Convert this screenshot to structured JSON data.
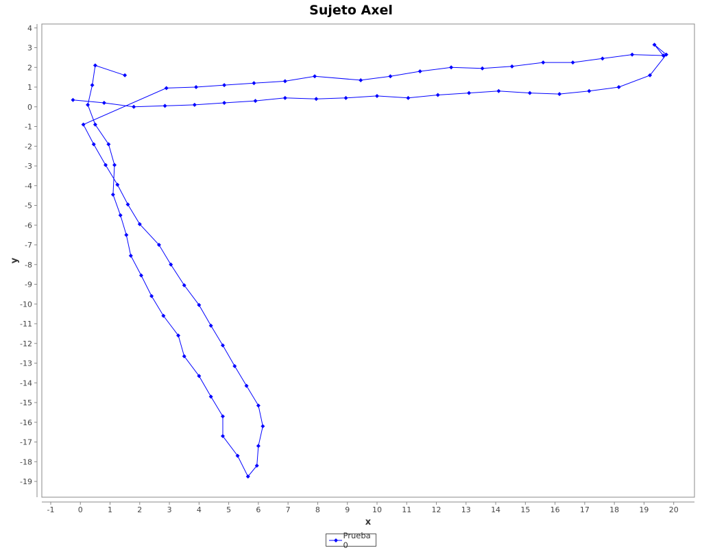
{
  "chart_data": {
    "type": "line",
    "title": "Sujeto Axel",
    "xlabel": "x",
    "ylabel": "y",
    "xlim": [
      -1.3,
      20.7
    ],
    "ylim": [
      -19.8,
      4.2
    ],
    "xticks": [
      -1,
      0,
      1,
      2,
      3,
      4,
      5,
      6,
      7,
      8,
      9,
      10,
      11,
      12,
      13,
      14,
      15,
      16,
      17,
      18,
      19,
      20
    ],
    "yticks": [
      4,
      3,
      2,
      1,
      0,
      -1,
      -2,
      -3,
      -4,
      -5,
      -6,
      -7,
      -8,
      -9,
      -10,
      -11,
      -12,
      -13,
      -14,
      -15,
      -16,
      -17,
      -18,
      -19
    ],
    "grid": false,
    "legend_position": "bottom",
    "series": [
      {
        "name": "Prueba 0",
        "color": "#0000ff",
        "marker": "diamond",
        "points": [
          [
            1.5,
            1.6
          ],
          [
            0.5,
            2.1
          ],
          [
            0.4,
            1.1
          ],
          [
            0.25,
            0.1
          ],
          [
            0.5,
            -0.9
          ],
          [
            0.95,
            -1.9
          ],
          [
            1.15,
            -2.95
          ],
          [
            1.1,
            -4.45
          ],
          [
            1.35,
            -5.5
          ],
          [
            1.55,
            -6.5
          ],
          [
            1.7,
            -7.55
          ],
          [
            2.05,
            -8.55
          ],
          [
            2.4,
            -9.6
          ],
          [
            2.8,
            -10.6
          ],
          [
            3.3,
            -11.6
          ],
          [
            3.5,
            -12.65
          ],
          [
            4.0,
            -13.65
          ],
          [
            4.4,
            -14.7
          ],
          [
            4.8,
            -15.7
          ],
          [
            4.8,
            -16.7
          ],
          [
            5.3,
            -17.7
          ],
          [
            5.65,
            -18.75
          ],
          [
            5.95,
            -18.2
          ],
          [
            6.0,
            -17.2
          ],
          [
            6.15,
            -16.2
          ],
          [
            6.0,
            -15.15
          ],
          [
            5.6,
            -14.15
          ],
          [
            5.2,
            -13.15
          ],
          [
            4.8,
            -12.1
          ],
          [
            4.4,
            -11.1
          ],
          [
            4.0,
            -10.05
          ],
          [
            3.5,
            -9.05
          ],
          [
            3.05,
            -8.0
          ],
          [
            2.65,
            -7.0
          ],
          [
            2.0,
            -5.95
          ],
          [
            1.6,
            -4.95
          ],
          [
            1.25,
            -3.95
          ],
          [
            0.85,
            -2.95
          ],
          [
            0.45,
            -1.9
          ],
          [
            0.1,
            -0.9
          ],
          [
            2.9,
            0.95
          ],
          [
            3.9,
            1.0
          ],
          [
            4.85,
            1.1
          ],
          [
            5.85,
            1.2
          ],
          [
            6.9,
            1.3
          ],
          [
            7.9,
            1.55
          ],
          [
            9.45,
            1.35
          ],
          [
            10.45,
            1.55
          ],
          [
            11.45,
            1.8
          ],
          [
            12.5,
            2.0
          ],
          [
            13.55,
            1.95
          ],
          [
            14.55,
            2.05
          ],
          [
            15.6,
            2.25
          ],
          [
            16.6,
            2.25
          ],
          [
            17.6,
            2.45
          ],
          [
            18.6,
            2.65
          ],
          [
            19.65,
            2.6
          ],
          [
            19.35,
            3.15
          ],
          [
            19.75,
            2.65
          ],
          [
            19.2,
            1.6
          ],
          [
            18.15,
            1.0
          ],
          [
            17.15,
            0.8
          ],
          [
            16.15,
            0.65
          ],
          [
            15.15,
            0.7
          ],
          [
            14.1,
            0.8
          ],
          [
            13.1,
            0.7
          ],
          [
            12.05,
            0.6
          ],
          [
            11.05,
            0.45
          ],
          [
            10.0,
            0.55
          ],
          [
            8.95,
            0.45
          ],
          [
            7.95,
            0.4
          ],
          [
            6.9,
            0.45
          ],
          [
            5.9,
            0.3
          ],
          [
            4.85,
            0.2
          ],
          [
            3.85,
            0.1
          ],
          [
            2.85,
            0.05
          ],
          [
            1.8,
            0.0
          ],
          [
            0.8,
            0.2
          ],
          [
            -0.25,
            0.35
          ]
        ]
      }
    ]
  }
}
